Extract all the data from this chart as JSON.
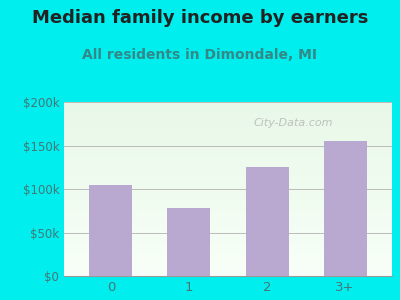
{
  "title": "Median family income by earners",
  "subtitle": "All residents in Dimondale, MI",
  "categories": [
    "0",
    "1",
    "2",
    "3+"
  ],
  "values": [
    105000,
    78000,
    125000,
    155000
  ],
  "bar_color": "#b9a8d0",
  "background_color": "#00eeee",
  "ylim": [
    0,
    200000
  ],
  "yticks": [
    0,
    50000,
    100000,
    150000,
    200000
  ],
  "ytick_labels": [
    "$0",
    "$50k",
    "$100k",
    "$150k",
    "$200k"
  ],
  "title_fontsize": 13,
  "subtitle_fontsize": 10,
  "watermark": "City-Data.com",
  "title_color": "#222222",
  "subtitle_color": "#338888",
  "tick_color": "#447777"
}
